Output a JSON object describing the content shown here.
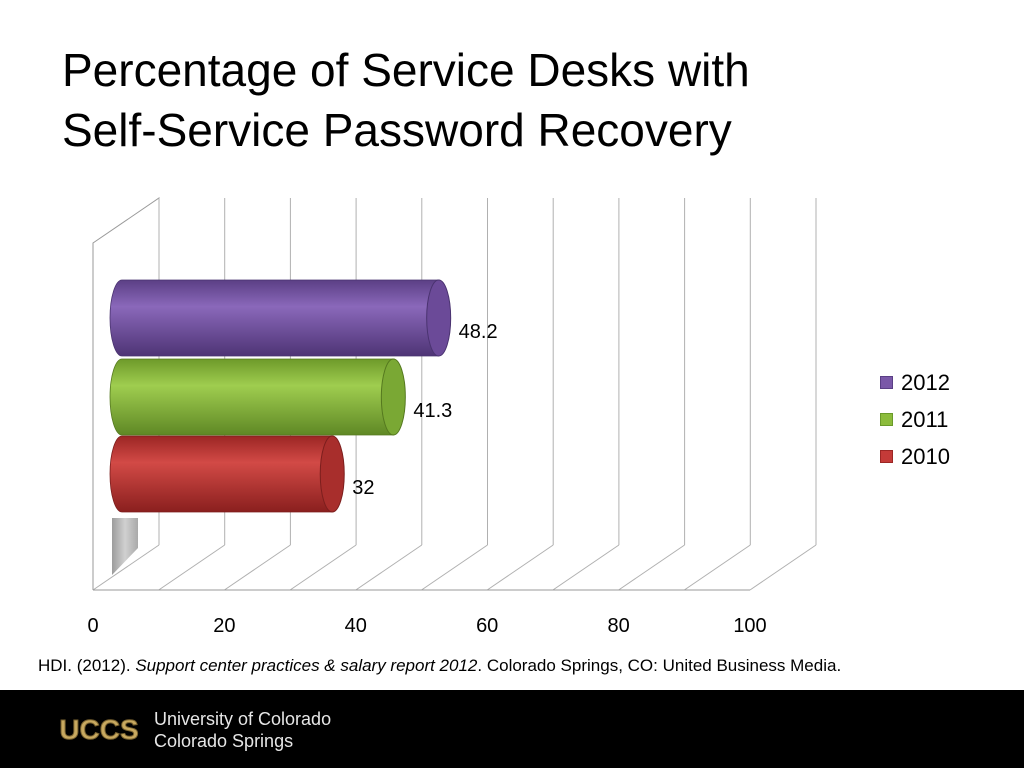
{
  "slide": {
    "title_line1": "Percentage of Service Desks with",
    "title_line2": "Self-Service Password Recovery"
  },
  "citation": {
    "part1": "HDI. (2012). ",
    "italic": "Support center practices & salary report 2012",
    "part2": ". Colorado Springs, CO: United Business Media."
  },
  "footer": {
    "logo_text": "UCCS",
    "univ_line1": "University of Colorado",
    "univ_line2": "Colorado Springs"
  },
  "colors": {
    "s2012": "#7a58a8",
    "s2011": "#8cbc3c",
    "s2010": "#c43a38",
    "gold": "#c8a960"
  },
  "chart_data": {
    "type": "bar",
    "orientation": "horizontal",
    "style": "3d-cylinder",
    "series": [
      {
        "name": "2012",
        "values": [
          48.2
        ]
      },
      {
        "name": "2011",
        "values": [
          41.3
        ]
      },
      {
        "name": "2010",
        "values": [
          32
        ]
      }
    ],
    "data_labels": [
      "48.2",
      "41.3",
      "32"
    ],
    "xlim": [
      0,
      100
    ],
    "xticks": [
      0,
      20,
      40,
      60,
      80,
      100
    ],
    "grid": true,
    "legend": "right",
    "title": "Percentage of Service Desks with Self-Service Password Recovery"
  }
}
